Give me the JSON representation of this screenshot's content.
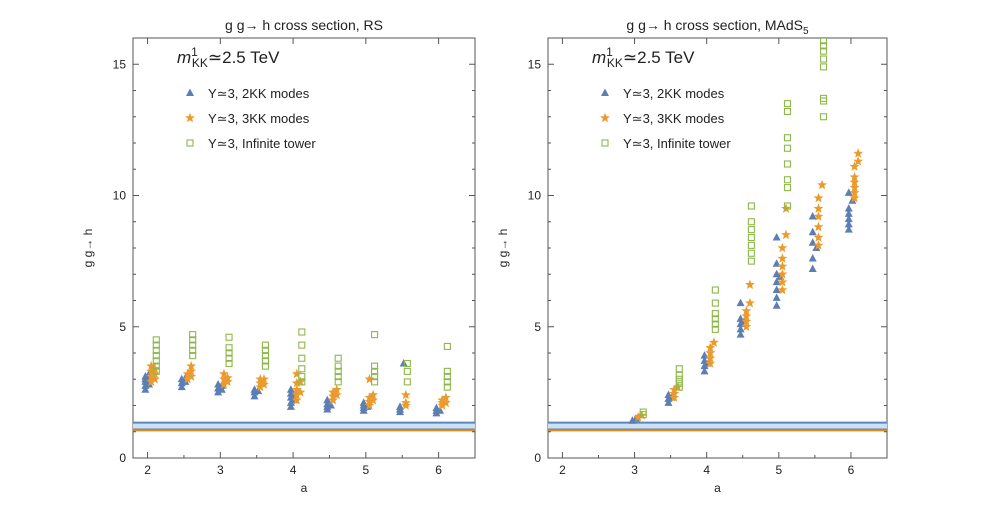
{
  "colors": {
    "two_kk": "#5b7fb5",
    "three_kk": "#eb9a2e",
    "infinite": "#8db84a",
    "band_fill": "#cfe0f0",
    "band_edge": "#5a86c4",
    "orange_line": "#e08c1a",
    "frame": "#555555"
  },
  "chart_data": [
    {
      "type": "scatter",
      "title": "g g→ h cross section, RS",
      "annotation": {
        "prefix": "m",
        "sup": "1",
        "sub": "KK",
        "suffix": "≃2.5 TeV"
      },
      "xlabel": "a",
      "ylabel": "g g→ h",
      "xlim": [
        1.8,
        6.5
      ],
      "ylim": [
        0,
        16
      ],
      "xticks": [
        2,
        3,
        4,
        5,
        6
      ],
      "yticks": [
        0,
        5,
        10,
        15
      ],
      "grid": false,
      "legend_position": "top-left",
      "bands": [
        {
          "name": "band",
          "ymin": 1.1,
          "ymax": 1.35
        },
        {
          "name": "line",
          "y": 1.05
        }
      ],
      "series": [
        {
          "name": "Υ≃3, 2KK modes",
          "marker": "triangle",
          "color": "two_kk",
          "points": [
            [
              1.97,
              2.6
            ],
            [
              1.97,
              2.75
            ],
            [
              1.97,
              2.9
            ],
            [
              1.97,
              3.0
            ],
            [
              1.97,
              3.1
            ],
            [
              2.02,
              2.8
            ],
            [
              2.02,
              3.0
            ],
            [
              2.02,
              3.2
            ],
            [
              2.47,
              2.7
            ],
            [
              2.47,
              2.85
            ],
            [
              2.47,
              3.0
            ],
            [
              2.52,
              2.9
            ],
            [
              2.52,
              3.05
            ],
            [
              2.97,
              2.5
            ],
            [
              2.97,
              2.65
            ],
            [
              2.97,
              2.8
            ],
            [
              3.02,
              2.6
            ],
            [
              3.02,
              2.75
            ],
            [
              3.47,
              2.35
            ],
            [
              3.47,
              2.5
            ],
            [
              3.47,
              2.6
            ],
            [
              3.52,
              2.55
            ],
            [
              3.97,
              1.95
            ],
            [
              3.97,
              2.1
            ],
            [
              3.97,
              2.3
            ],
            [
              3.97,
              2.45
            ],
            [
              3.97,
              2.6
            ],
            [
              4.02,
              2.2
            ],
            [
              4.02,
              2.4
            ],
            [
              4.47,
              1.85
            ],
            [
              4.47,
              1.95
            ],
            [
              4.47,
              2.05
            ],
            [
              4.47,
              2.2
            ],
            [
              4.52,
              2.0
            ],
            [
              4.97,
              1.8
            ],
            [
              4.97,
              1.9
            ],
            [
              4.97,
              2.0
            ],
            [
              4.97,
              2.1
            ],
            [
              5.02,
              1.95
            ],
            [
              5.47,
              1.75
            ],
            [
              5.47,
              1.85
            ],
            [
              5.47,
              1.95
            ],
            [
              5.52,
              3.6
            ],
            [
              5.97,
              1.7
            ],
            [
              5.97,
              1.8
            ],
            [
              5.97,
              1.9
            ],
            [
              6.02,
              1.8
            ]
          ]
        },
        {
          "name": "Υ≃3, 3KK modes",
          "marker": "star",
          "color": "three_kk",
          "points": [
            [
              2.05,
              2.9
            ],
            [
              2.05,
              3.1
            ],
            [
              2.05,
              3.3
            ],
            [
              2.05,
              3.5
            ],
            [
              2.1,
              3.0
            ],
            [
              2.1,
              3.2
            ],
            [
              2.1,
              3.4
            ],
            [
              2.55,
              3.0
            ],
            [
              2.55,
              3.2
            ],
            [
              2.6,
              3.1
            ],
            [
              2.6,
              3.3
            ],
            [
              2.6,
              3.5
            ],
            [
              3.05,
              2.8
            ],
            [
              3.05,
              3.0
            ],
            [
              3.05,
              3.2
            ],
            [
              3.1,
              2.9
            ],
            [
              3.1,
              3.05
            ],
            [
              3.55,
              2.7
            ],
            [
              3.55,
              2.85
            ],
            [
              3.55,
              3.0
            ],
            [
              3.6,
              2.8
            ],
            [
              3.6,
              3.0
            ],
            [
              4.05,
              2.2
            ],
            [
              4.05,
              2.4
            ],
            [
              4.05,
              2.6
            ],
            [
              4.05,
              2.85
            ],
            [
              4.05,
              3.2
            ],
            [
              4.1,
              2.5
            ],
            [
              4.1,
              2.9
            ],
            [
              4.55,
              2.2
            ],
            [
              4.55,
              2.35
            ],
            [
              4.55,
              2.5
            ],
            [
              4.6,
              2.4
            ],
            [
              4.6,
              2.6
            ],
            [
              5.05,
              2.0
            ],
            [
              5.05,
              2.15
            ],
            [
              5.05,
              2.3
            ],
            [
              5.05,
              3.0
            ],
            [
              5.1,
              2.2
            ],
            [
              5.1,
              2.4
            ],
            [
              5.55,
              2.0
            ],
            [
              5.55,
              2.1
            ],
            [
              5.55,
              2.4
            ],
            [
              6.05,
              2.0
            ],
            [
              6.05,
              2.1
            ],
            [
              6.05,
              2.2
            ],
            [
              6.1,
              2.1
            ],
            [
              6.1,
              2.3
            ]
          ]
        },
        {
          "name": "Υ≃3, Infinite tower",
          "marker": "square",
          "color": "infinite",
          "points": [
            [
              2.12,
              3.3
            ],
            [
              2.12,
              3.5
            ],
            [
              2.12,
              3.7
            ],
            [
              2.12,
              3.9
            ],
            [
              2.12,
              4.1
            ],
            [
              2.12,
              4.3
            ],
            [
              2.12,
              4.5
            ],
            [
              2.62,
              3.9
            ],
            [
              2.62,
              4.1
            ],
            [
              2.62,
              4.3
            ],
            [
              2.62,
              4.5
            ],
            [
              2.62,
              4.7
            ],
            [
              3.12,
              3.6
            ],
            [
              3.12,
              3.8
            ],
            [
              3.12,
              4.0
            ],
            [
              3.12,
              4.2
            ],
            [
              3.12,
              4.6
            ],
            [
              3.62,
              3.5
            ],
            [
              3.62,
              3.7
            ],
            [
              3.62,
              3.9
            ],
            [
              3.62,
              4.1
            ],
            [
              3.62,
              4.3
            ],
            [
              4.12,
              2.9
            ],
            [
              4.12,
              3.1
            ],
            [
              4.12,
              3.4
            ],
            [
              4.12,
              3.8
            ],
            [
              4.12,
              4.3
            ],
            [
              4.12,
              4.8
            ],
            [
              4.62,
              2.9
            ],
            [
              4.62,
              3.1
            ],
            [
              4.62,
              3.3
            ],
            [
              4.62,
              3.5
            ],
            [
              4.62,
              3.8
            ],
            [
              5.12,
              2.9
            ],
            [
              5.12,
              3.1
            ],
            [
              5.12,
              3.3
            ],
            [
              5.12,
              3.5
            ],
            [
              5.12,
              4.7
            ],
            [
              5.57,
              2.9
            ],
            [
              5.57,
              3.3
            ],
            [
              5.57,
              3.6
            ],
            [
              6.12,
              2.7
            ],
            [
              6.12,
              2.9
            ],
            [
              6.12,
              3.1
            ],
            [
              6.12,
              3.3
            ],
            [
              6.12,
              4.25
            ]
          ]
        }
      ]
    },
    {
      "type": "scatter",
      "title": "g g→ h cross section, MAdS",
      "title_sub": "5",
      "annotation": {
        "prefix": "m",
        "sup": "1",
        "sub": "KK",
        "suffix": "≃2.5 TeV"
      },
      "xlabel": "a",
      "ylabel": "g g→ h",
      "xlim": [
        1.8,
        6.5
      ],
      "ylim": [
        0,
        16
      ],
      "xticks": [
        2,
        3,
        4,
        5,
        6
      ],
      "yticks": [
        0,
        5,
        10,
        15
      ],
      "grid": false,
      "legend_position": "top-left",
      "bands": [
        {
          "name": "band",
          "ymin": 1.1,
          "ymax": 1.35
        },
        {
          "name": "line",
          "y": 1.05
        }
      ],
      "series": [
        {
          "name": "Υ≃3, 2KK modes",
          "marker": "triangle",
          "color": "two_kk",
          "points": [
            [
              2.97,
              1.42
            ],
            [
              3.02,
              1.5
            ],
            [
              3.47,
              2.1
            ],
            [
              3.47,
              2.25
            ],
            [
              3.47,
              2.4
            ],
            [
              3.52,
              2.3
            ],
            [
              3.97,
              3.3
            ],
            [
              3.97,
              3.5
            ],
            [
              3.97,
              3.7
            ],
            [
              3.97,
              3.9
            ],
            [
              4.02,
              3.6
            ],
            [
              4.47,
              4.7
            ],
            [
              4.47,
              4.9
            ],
            [
              4.47,
              5.1
            ],
            [
              4.47,
              5.3
            ],
            [
              4.47,
              5.9
            ],
            [
              4.52,
              5.2
            ],
            [
              4.97,
              5.8
            ],
            [
              4.97,
              6.1
            ],
            [
              4.97,
              6.4
            ],
            [
              4.97,
              6.7
            ],
            [
              4.97,
              7.0
            ],
            [
              4.97,
              7.4
            ],
            [
              4.97,
              8.4
            ],
            [
              5.02,
              6.9
            ],
            [
              5.47,
              7.2
            ],
            [
              5.47,
              7.6
            ],
            [
              5.47,
              8.2
            ],
            [
              5.47,
              8.6
            ],
            [
              5.47,
              9.2
            ],
            [
              5.52,
              8.0
            ],
            [
              5.97,
              8.7
            ],
            [
              5.97,
              8.9
            ],
            [
              5.97,
              9.1
            ],
            [
              5.97,
              9.3
            ],
            [
              5.97,
              9.5
            ],
            [
              5.97,
              10.1
            ],
            [
              6.02,
              9.8
            ]
          ]
        },
        {
          "name": "Υ≃3, 3KK modes",
          "marker": "star",
          "color": "three_kk",
          "points": [
            [
              3.05,
              1.55
            ],
            [
              3.1,
              1.62
            ],
            [
              3.55,
              2.3
            ],
            [
              3.55,
              2.45
            ],
            [
              3.55,
              2.6
            ],
            [
              3.6,
              2.7
            ],
            [
              4.05,
              3.6
            ],
            [
              4.05,
              3.8
            ],
            [
              4.05,
              4.0
            ],
            [
              4.05,
              4.2
            ],
            [
              4.1,
              4.4
            ],
            [
              4.55,
              5.0
            ],
            [
              4.55,
              5.2
            ],
            [
              4.55,
              5.4
            ],
            [
              4.55,
              5.6
            ],
            [
              4.6,
              5.9
            ],
            [
              4.6,
              6.6
            ],
            [
              5.05,
              6.4
            ],
            [
              5.05,
              6.7
            ],
            [
              5.05,
              7.0
            ],
            [
              5.05,
              7.3
            ],
            [
              5.05,
              7.6
            ],
            [
              5.05,
              8.0
            ],
            [
              5.1,
              8.5
            ],
            [
              5.1,
              9.5
            ],
            [
              5.55,
              8.1
            ],
            [
              5.55,
              8.4
            ],
            [
              5.55,
              8.8
            ],
            [
              5.55,
              9.2
            ],
            [
              5.55,
              9.5
            ],
            [
              5.55,
              9.9
            ],
            [
              5.6,
              10.4
            ],
            [
              6.05,
              9.9
            ],
            [
              6.05,
              10.1
            ],
            [
              6.05,
              10.3
            ],
            [
              6.05,
              10.5
            ],
            [
              6.05,
              10.7
            ],
            [
              6.05,
              11.1
            ],
            [
              6.1,
              11.3
            ],
            [
              6.1,
              11.6
            ]
          ]
        },
        {
          "name": "Υ≃3, Infinite tower",
          "marker": "square",
          "color": "infinite",
          "points": [
            [
              3.12,
              1.65
            ],
            [
              3.12,
              1.75
            ],
            [
              3.62,
              2.7
            ],
            [
              3.62,
              2.85
            ],
            [
              3.62,
              3.0
            ],
            [
              3.62,
              3.15
            ],
            [
              3.62,
              3.4
            ],
            [
              4.12,
              4.9
            ],
            [
              4.12,
              5.1
            ],
            [
              4.12,
              5.3
            ],
            [
              4.12,
              5.5
            ],
            [
              4.12,
              5.9
            ],
            [
              4.12,
              6.4
            ],
            [
              4.62,
              7.5
            ],
            [
              4.62,
              7.8
            ],
            [
              4.62,
              8.1
            ],
            [
              4.62,
              8.4
            ],
            [
              4.62,
              8.7
            ],
            [
              4.62,
              9.0
            ],
            [
              4.62,
              9.6
            ],
            [
              5.12,
              9.6
            ],
            [
              5.12,
              10.3
            ],
            [
              5.12,
              10.6
            ],
            [
              5.12,
              11.2
            ],
            [
              5.12,
              11.8
            ],
            [
              5.12,
              12.2
            ],
            [
              5.12,
              13.2
            ],
            [
              5.12,
              13.5
            ],
            [
              5.62,
              13.0
            ],
            [
              5.62,
              13.6
            ],
            [
              5.62,
              13.7
            ],
            [
              5.62,
              14.9
            ],
            [
              5.62,
              15.2
            ],
            [
              5.62,
              15.5
            ],
            [
              5.62,
              15.7
            ],
            [
              5.62,
              15.9
            ]
          ]
        }
      ]
    }
  ]
}
